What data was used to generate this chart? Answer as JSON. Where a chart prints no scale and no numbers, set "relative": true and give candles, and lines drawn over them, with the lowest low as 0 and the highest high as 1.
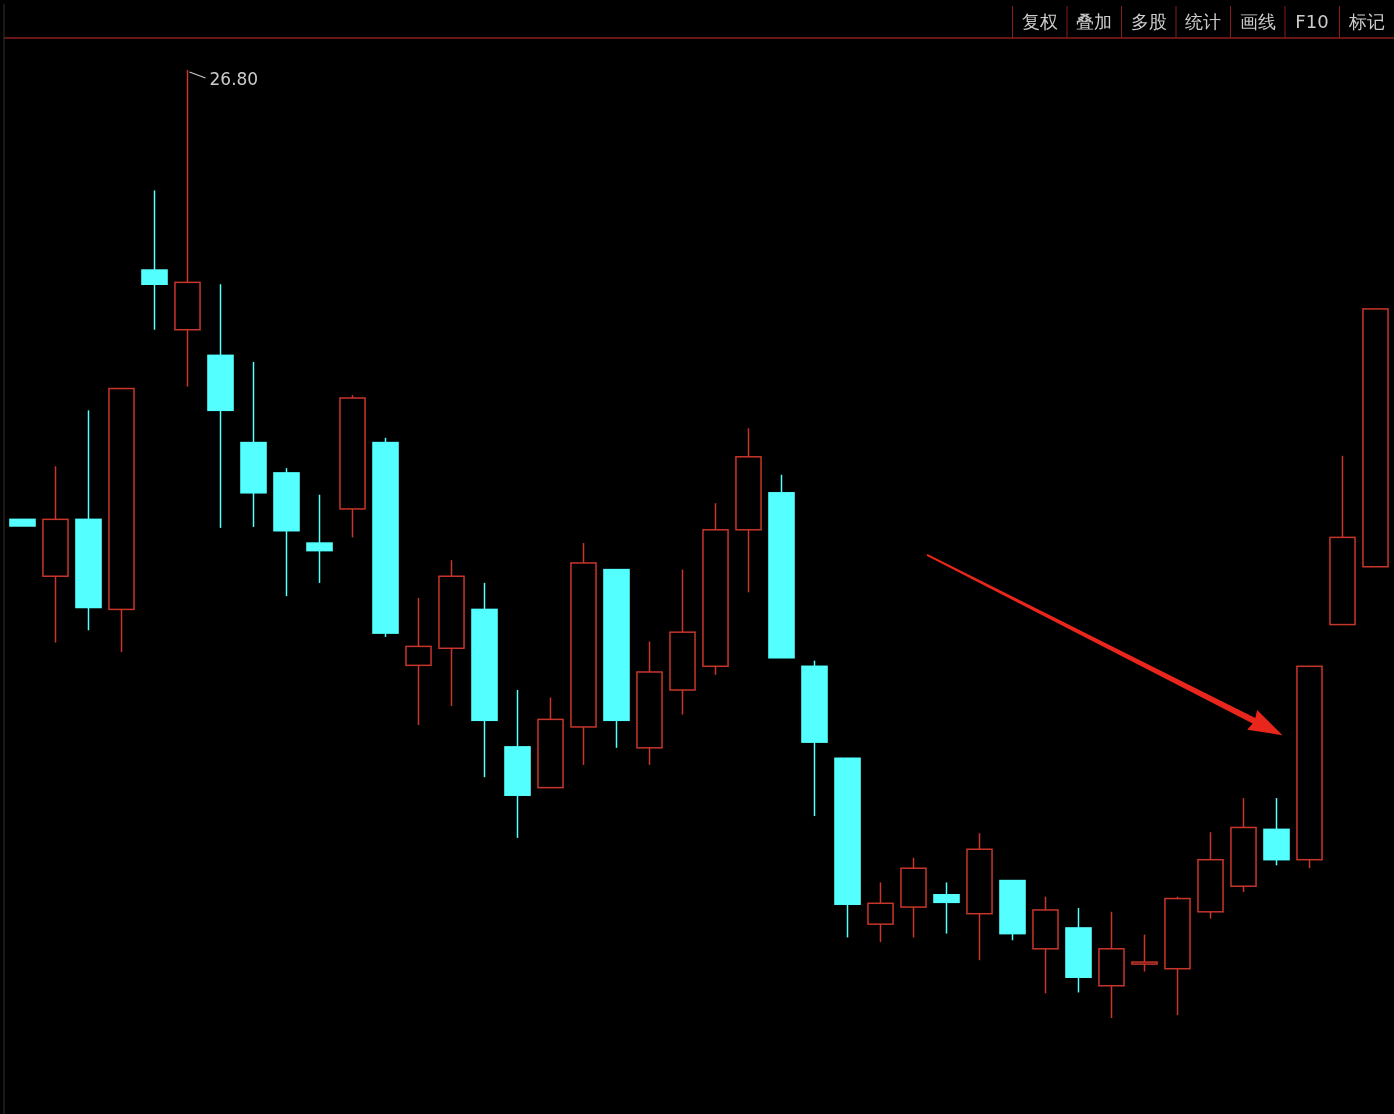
{
  "chart_data": {
    "type": "candlestick",
    "relative": true,
    "categories": [
      null,
      null,
      null,
      null,
      null,
      null,
      null,
      null,
      null,
      null,
      null,
      null,
      null,
      null,
      null,
      null,
      null,
      null,
      null,
      null,
      null,
      null,
      null,
      null,
      null,
      null,
      null,
      null,
      null,
      null,
      null,
      null,
      null,
      null,
      null,
      null,
      null,
      null,
      null,
      null,
      null,
      null
    ],
    "ohlc": [
      [
        0.526,
        0.526,
        0.519,
        0.519
      ],
      [
        0.466,
        0.582,
        0.396,
        0.526
      ],
      [
        0.526,
        0.641,
        0.409,
        0.433
      ],
      [
        0.431,
        0.664,
        0.386,
        0.664
      ],
      [
        0.789,
        0.873,
        0.726,
        0.774
      ],
      [
        0.726,
        1.0,
        0.666,
        0.776
      ],
      [
        0.699,
        0.774,
        0.517,
        0.641
      ],
      [
        0.607,
        0.692,
        0.518,
        0.554
      ],
      [
        0.575,
        0.58,
        0.445,
        0.514
      ],
      [
        0.501,
        0.552,
        0.459,
        0.493
      ],
      [
        0.537,
        0.657,
        0.507,
        0.654
      ],
      [
        0.607,
        0.612,
        0.402,
        0.406
      ],
      [
        0.372,
        0.443,
        0.309,
        0.392
      ],
      [
        0.39,
        0.483,
        0.329,
        0.466
      ],
      [
        0.431,
        0.459,
        0.254,
        0.314
      ],
      [
        0.286,
        0.346,
        0.19,
        0.235
      ],
      [
        0.243,
        0.338,
        0.243,
        0.315
      ],
      [
        0.307,
        0.501,
        0.267,
        0.48
      ],
      [
        0.473,
        0.473,
        0.285,
        0.314
      ],
      [
        0.285,
        0.397,
        0.267,
        0.365
      ],
      [
        0.346,
        0.473,
        0.32,
        0.407
      ],
      [
        0.371,
        0.543,
        0.362,
        0.515
      ],
      [
        0.515,
        0.622,
        0.449,
        0.592
      ],
      [
        0.554,
        0.573,
        0.38,
        0.38
      ],
      [
        0.371,
        0.377,
        0.213,
        0.291
      ],
      [
        0.274,
        0.274,
        0.085,
        0.12
      ],
      [
        0.099,
        0.143,
        0.08,
        0.121
      ],
      [
        0.117,
        0.169,
        0.085,
        0.158
      ],
      [
        0.13,
        0.143,
        0.089,
        0.122
      ],
      [
        0.11,
        0.195,
        0.061,
        0.178
      ],
      [
        0.145,
        0.145,
        0.082,
        0.089
      ],
      [
        0.073,
        0.128,
        0.026,
        0.114
      ],
      [
        0.095,
        0.116,
        0.027,
        0.043
      ],
      [
        0.034,
        0.112,
        0.0,
        0.073
      ],
      [
        0.057,
        0.088,
        0.049,
        0.059
      ],
      [
        0.052,
        0.128,
        0.003,
        0.126
      ],
      [
        0.112,
        0.196,
        0.105,
        0.167
      ],
      [
        0.139,
        0.232,
        0.133,
        0.201
      ],
      [
        0.199,
        0.232,
        0.161,
        0.167
      ],
      [
        0.167,
        0.371,
        0.158,
        0.371
      ],
      [
        0.415,
        0.593,
        0.415,
        0.507
      ],
      [
        0.476,
        0.748,
        0.476,
        0.748
      ]
    ],
    "colors": [
      "#54ffff",
      "#c8352b",
      "#54ffff",
      "#c8352b",
      "#54ffff",
      "#c8352b",
      "#54ffff",
      "#54ffff",
      "#54ffff",
      "#54ffff",
      "#c8352b",
      "#54ffff",
      "#c8352b",
      "#c8352b",
      "#54ffff",
      "#54ffff",
      "#c8352b",
      "#c8352b",
      "#54ffff",
      "#c8352b",
      "#c8352b",
      "#c8352b",
      "#c8352b",
      "#54ffff",
      "#54ffff",
      "#54ffff",
      "#c8352b",
      "#c8352b",
      "#54ffff",
      "#c8352b",
      "#54ffff",
      "#c8352b",
      "#54ffff",
      "#c8352b",
      "#c8352b",
      "#c8352b",
      "#c8352b",
      "#c8352b",
      "#54ffff",
      "#c8352b",
      "#c8352b",
      "#c8352b"
    ],
    "annotations": [
      "26.80",
      "复权",
      "叠加",
      "多股",
      "统计",
      "画线",
      "F10",
      "标记"
    ]
  }
}
